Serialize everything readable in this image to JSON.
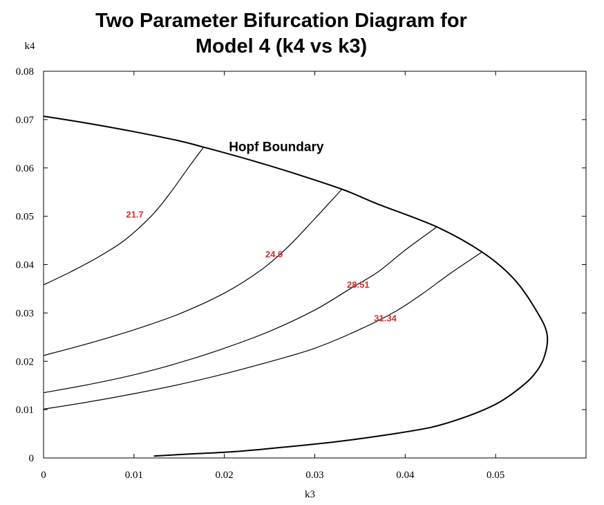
{
  "chart_data": {
    "type": "line",
    "title_line1": "Two Parameter Bifurcation Diagram for",
    "title_line2": "Model 4 (k4 vs k3)",
    "xlabel": "k3",
    "ylabel": "k4",
    "xlim": [
      0,
      0.06
    ],
    "ylim": [
      0,
      0.08
    ],
    "xticks": [
      0,
      0.01,
      0.02,
      0.03,
      0.04,
      0.05
    ],
    "xtick_labels": [
      "0",
      "0.01",
      "0.02",
      "0.03",
      "0.04",
      "0.05"
    ],
    "yticks": [
      0,
      0.01,
      0.02,
      0.03,
      0.04,
      0.05,
      0.06,
      0.07,
      0.08
    ],
    "ytick_labels": [
      "0",
      "0.01",
      "0.02",
      "0.03",
      "0.04",
      "0.05",
      "0.06",
      "0.07",
      "0.08"
    ],
    "grid": false,
    "annotation": {
      "text": "Hopf Boundary",
      "x": 0.0205,
      "y": 0.0635
    },
    "boundary": {
      "x": [
        0.0,
        0.005,
        0.01,
        0.015,
        0.0177,
        0.022,
        0.027,
        0.033,
        0.037,
        0.0435,
        0.0485,
        0.052,
        0.0545,
        0.0557,
        0.0553,
        0.054,
        0.052,
        0.05,
        0.047,
        0.043,
        0.038,
        0.033,
        0.027,
        0.021,
        0.016,
        0.0122
      ],
      "y": [
        0.0707,
        0.0692,
        0.0675,
        0.0656,
        0.0643,
        0.0621,
        0.0593,
        0.0556,
        0.0525,
        0.0478,
        0.0426,
        0.0371,
        0.0305,
        0.0255,
        0.0205,
        0.0167,
        0.0135,
        0.0111,
        0.0087,
        0.0064,
        0.0048,
        0.0035,
        0.0023,
        0.0013,
        0.0008,
        0.0004
      ]
    },
    "series": [
      {
        "name": "21.7",
        "x": [
          0.0,
          0.003,
          0.006,
          0.009,
          0.012,
          0.014,
          0.016,
          0.0177
        ],
        "y": [
          0.0358,
          0.0385,
          0.0415,
          0.0451,
          0.0502,
          0.0548,
          0.06,
          0.0643
        ]
      },
      {
        "name": "24.9",
        "x": [
          0.0,
          0.005,
          0.01,
          0.015,
          0.02,
          0.024,
          0.027,
          0.03,
          0.033
        ],
        "y": [
          0.0212,
          0.0237,
          0.0265,
          0.0298,
          0.0341,
          0.0388,
          0.0436,
          0.0495,
          0.0556
        ]
      },
      {
        "name": "28.51",
        "x": [
          0.0,
          0.005,
          0.01,
          0.015,
          0.02,
          0.025,
          0.03,
          0.034,
          0.037,
          0.04,
          0.0435
        ],
        "y": [
          0.0135,
          0.0152,
          0.0172,
          0.0197,
          0.0227,
          0.0262,
          0.0306,
          0.0351,
          0.0385,
          0.043,
          0.0478
        ]
      },
      {
        "name": "31.34",
        "x": [
          0.0,
          0.005,
          0.01,
          0.015,
          0.02,
          0.025,
          0.03,
          0.035,
          0.039,
          0.042,
          0.045,
          0.0485
        ],
        "y": [
          0.0101,
          0.0116,
          0.0133,
          0.0152,
          0.0174,
          0.0199,
          0.0227,
          0.0266,
          0.0304,
          0.0341,
          0.0382,
          0.0426
        ]
      }
    ],
    "series_label_positions": [
      {
        "x": 0.0101,
        "y": 0.0497
      },
      {
        "x": 0.0255,
        "y": 0.0415
      },
      {
        "x": 0.0348,
        "y": 0.0352
      },
      {
        "x": 0.0378,
        "y": 0.0283
      }
    ],
    "colors": {
      "lines": "#000000",
      "series_labels": "#d32f2f"
    }
  }
}
